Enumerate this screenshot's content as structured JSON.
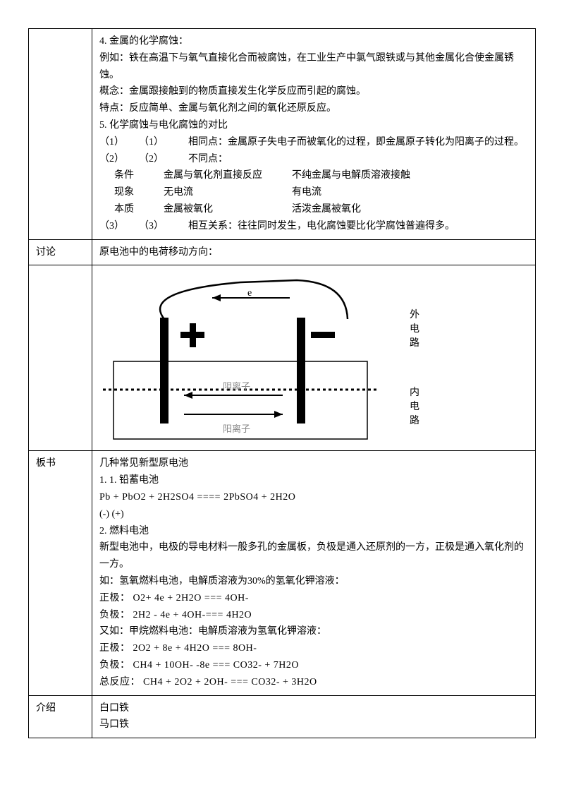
{
  "section1": {
    "title": "4.  金属的化学腐蚀：",
    "line2": "例如：铁在高温下与氧气直接化合而被腐蚀，在工业生产中氯气跟铁或与其他金属化合使金属锈蚀。",
    "line3": "概念：金属跟接触到的物质直接发生化学反应而引起的腐蚀。",
    "line4": "特点：反应简单、金属与氧化剂之间的氧化还原反应。",
    "title5": " 5.  化学腐蚀与电化腐蚀的对比",
    "p1a": "（1）",
    "p1b": "（1）",
    "p1c": "相同点：金属原子失电子而被氧化的过程，即金属原子转化为阳离子的过程。",
    "p2a": "（2）",
    "p2b": "（2）",
    "p2c": "不同点：",
    "row_cond_h": "条件",
    "row_cond_1": "金属与氧化剂直接反应",
    "row_cond_2": "不纯金属与电解质溶液接触",
    "row_phen_h": "现象",
    "row_phen_1": "无电流",
    "row_phen_2": "有电流",
    "row_ess_h": "本质",
    "row_ess_1": "金属被氧化",
    "row_ess_2": "活泼金属被氧化",
    "p3a": "（3）",
    "p3b": "（3）",
    "p3c": "相互关系：往往同时发生，电化腐蚀要比化学腐蚀普遍得多。"
  },
  "discuss": {
    "label": "讨论",
    "text": "原电池中的电荷移动方向："
  },
  "diagram": {
    "e_label": "e",
    "outer": "外电路",
    "anion": "阴离子",
    "cation": "阳离子",
    "inner": "内电路",
    "colors": {
      "black": "#000000",
      "gray_text": "#999999"
    }
  },
  "board": {
    "label": "板书",
    "title": "几种常见新型原电池",
    "line1": "1.   1.     铅蓄电池",
    "eq1": "Pb + PbO2 + 2H2SO4 ==== 2PbSO4 + 2H2O",
    "eq1_sign": "(-)   (+)",
    "line2": "2.  燃料电池",
    "line3": "新型电池中，电极的导电材料一般多孔的金属板，负极是通入还原剂的一方，正极是通入氧化剂的一方。",
    "line4": "如：氢氧燃料电池，电解质溶液为30%的氢氧化钾溶液：",
    "eq_pos1": "正极：  O2+ 4e + 2H2O ===  4OH-",
    "eq_neg1": "负极：  2H2  - 4e + 4OH-===  4H2O",
    "line5": "又如：甲烷燃料电池：电解质溶液为氢氧化钾溶液：",
    "eq_pos2": "正极：  2O2  + 8e  + 4H2O  ===  8OH-",
    "eq_neg2": "负极：  CH4 + 10OH-  -8e  ===  CO32- + 7H2O",
    "eq_total": "总反应： CH4 + 2O2 + 2OH-  ===  CO32-  + 3H2O"
  },
  "intro": {
    "label": "介绍",
    "line1": "白口铁",
    "line2": "马口铁"
  }
}
